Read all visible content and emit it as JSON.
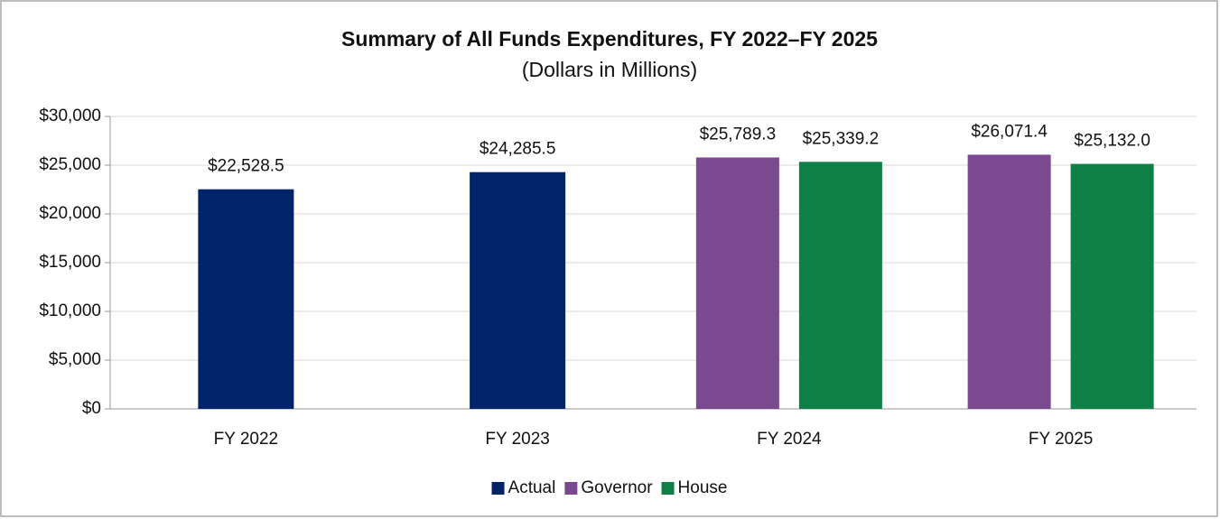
{
  "chart_data": {
    "type": "bar",
    "title": "Summary of All Funds Expenditures, FY 2022–FY 2025",
    "subtitle": "(Dollars in Millions)",
    "categories": [
      "FY 2022",
      "FY 2023",
      "FY 2024",
      "FY 2025"
    ],
    "series": [
      {
        "name": "Actual",
        "color": "#00236a",
        "values": [
          22528.5,
          24285.5,
          null,
          null
        ],
        "value_labels": [
          "$22,528.5",
          "$24,285.5",
          null,
          null
        ]
      },
      {
        "name": "Governor",
        "color": "#7b4990",
        "values": [
          null,
          null,
          25789.3,
          26071.4
        ],
        "value_labels": [
          null,
          null,
          "$25,789.3",
          "$26,071.4"
        ]
      },
      {
        "name": "House",
        "color": "#0e7f45",
        "values": [
          null,
          null,
          25339.2,
          25132.0
        ],
        "value_labels": [
          null,
          null,
          "$25,339.2",
          "$25,132.0"
        ]
      }
    ],
    "ylim": [
      0,
      30000
    ],
    "yticks": [
      {
        "value": 0,
        "label": "$0"
      },
      {
        "value": 5000,
        "label": "$5,000"
      },
      {
        "value": 10000,
        "label": "$10,000"
      },
      {
        "value": 15000,
        "label": "$15,000"
      },
      {
        "value": 20000,
        "label": "$20,000"
      },
      {
        "value": 25000,
        "label": "$25,000"
      },
      {
        "value": 30000,
        "label": "$30,000"
      }
    ],
    "grid": true,
    "legend": "bottom"
  }
}
